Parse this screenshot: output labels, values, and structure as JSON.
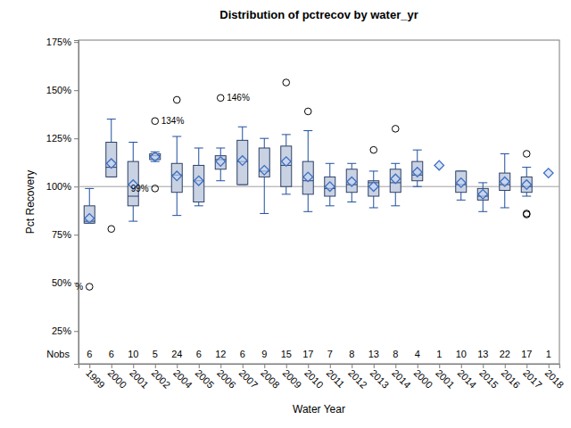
{
  "chart_data": {
    "type": "box",
    "title": "Distribution of pctrecov by water_yr",
    "x_label": "Water Year",
    "y_label": "Pct Recovery",
    "nobs_label": "Nobs",
    "categories": [
      "1999",
      "2000",
      "2001",
      "2002",
      "2004",
      "2005",
      "2006",
      "2007",
      "2008",
      "2009",
      "2010",
      "2011",
      "2012",
      "2013",
      "2014",
      "2000",
      "2001",
      "2014",
      "2015",
      "2016",
      "2017",
      "2018"
    ],
    "nobs": [
      6,
      6,
      10,
      5,
      24,
      6,
      12,
      6,
      9,
      15,
      17,
      7,
      8,
      13,
      8,
      4,
      1,
      10,
      13,
      22,
      17,
      1
    ],
    "whisker_low": [
      81,
      105,
      82,
      113,
      85,
      90,
      103,
      101,
      86,
      96,
      87,
      90,
      92,
      89,
      90,
      100,
      null,
      93,
      87,
      89,
      95,
      null
    ],
    "q1": [
      81,
      105,
      90,
      114,
      97,
      92,
      109,
      101,
      105,
      100,
      96,
      95,
      97,
      95,
      97,
      103,
      null,
      97,
      93,
      98,
      97,
      null
    ],
    "median": [
      82,
      110,
      95,
      116,
      106,
      103,
      114,
      113,
      108,
      111,
      103,
      99,
      101,
      102,
      102,
      106,
      null,
      101,
      95,
      101,
      100,
      null
    ],
    "q3": [
      90,
      123,
      113,
      117,
      112,
      111,
      116,
      124,
      120,
      121,
      113,
      105,
      109,
      103,
      109,
      113,
      null,
      108,
      99,
      107,
      105,
      null
    ],
    "whisker_high": [
      99,
      135,
      123,
      118,
      126,
      120,
      120,
      131,
      125,
      127,
      129,
      112,
      112,
      108,
      112,
      119,
      null,
      108,
      102,
      117,
      110,
      null
    ],
    "mean": [
      83.5,
      112,
      101,
      115.5,
      105.5,
      103,
      113,
      113.5,
      108.5,
      113,
      105,
      100,
      102.5,
      100,
      104,
      107.5,
      111,
      102,
      96,
      102.5,
      101,
      107
    ],
    "outliers": [
      [
        48
      ],
      [
        78
      ],
      [],
      [
        99,
        134
      ],
      [
        145
      ],
      [],
      [
        146
      ],
      [],
      [],
      [
        154
      ],
      [
        139
      ],
      [],
      [],
      [
        119
      ],
      [
        130
      ],
      [],
      [],
      [],
      [],
      [],
      [
        117,
        86,
        85.5
      ],
      []
    ],
    "annotations": [
      {
        "text": "%",
        "category_index": 0,
        "value": 48
      },
      {
        "text": "99%",
        "category_index": 3,
        "value": 99
      },
      {
        "text": "134%",
        "category_index": 3,
        "value": 134
      },
      {
        "text": "146%",
        "category_index": 6,
        "value": 146
      }
    ],
    "reference_line": 100,
    "ylim": [
      8,
      176
    ],
    "yticks": [
      {
        "value": 25,
        "label": "25%"
      },
      {
        "value": 50,
        "label": "50%"
      },
      {
        "value": 75,
        "label": "75%"
      },
      {
        "value": 100,
        "label": "100%"
      },
      {
        "value": 125,
        "label": "125%"
      },
      {
        "value": 150,
        "label": "150%"
      },
      {
        "value": 175,
        "label": "175%"
      }
    ],
    "grid": false,
    "marker": "diamond",
    "color": "#c9d2e3"
  }
}
